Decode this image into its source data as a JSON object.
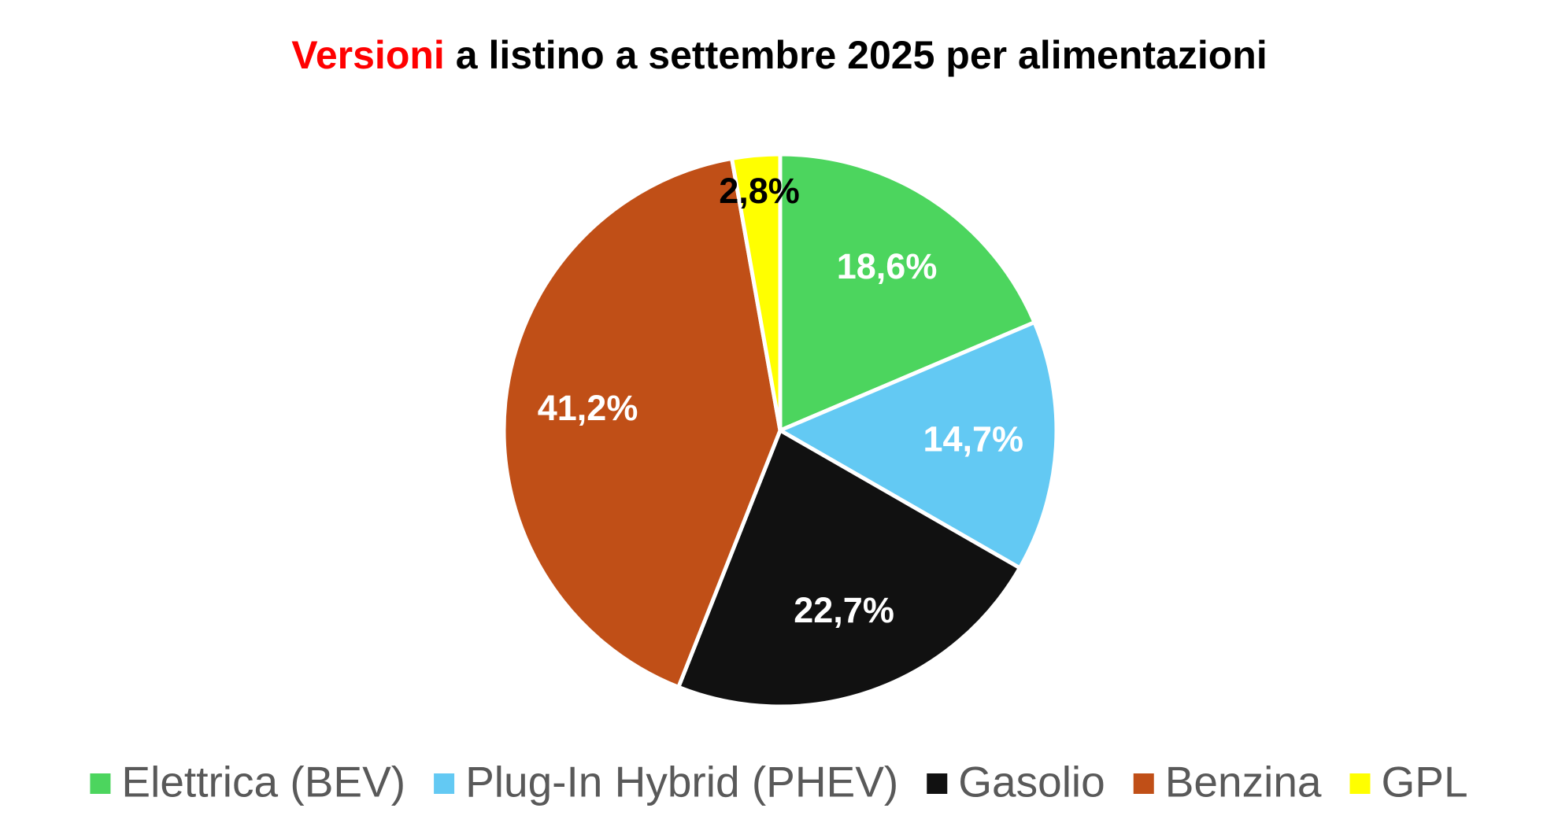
{
  "chart_data": {
    "type": "pie",
    "title": [
      {
        "text": "Versioni",
        "color": "#ff0000"
      },
      {
        "text": "a listino a settembre 2025 per alimentazioni",
        "color": "#000000"
      }
    ],
    "categories": [
      "Elettrica (BEV)",
      "Plug-In Hybrid (PHEV)",
      "Gasolio",
      "Benzina",
      "GPL"
    ],
    "values": [
      18.6,
      14.7,
      22.7,
      41.2,
      2.8
    ],
    "value_labels": [
      "18,6%",
      "14,7%",
      "22,7%",
      "41,2%",
      "2,8%"
    ],
    "colors": [
      "#4cd55e",
      "#63c9f3",
      "#111111",
      "#c04f17",
      "#ffff00"
    ],
    "label_colors": [
      "#ffffff",
      "#ffffff",
      "#ffffff",
      "#ffffff",
      "#000000"
    ],
    "legend": "bottom"
  }
}
